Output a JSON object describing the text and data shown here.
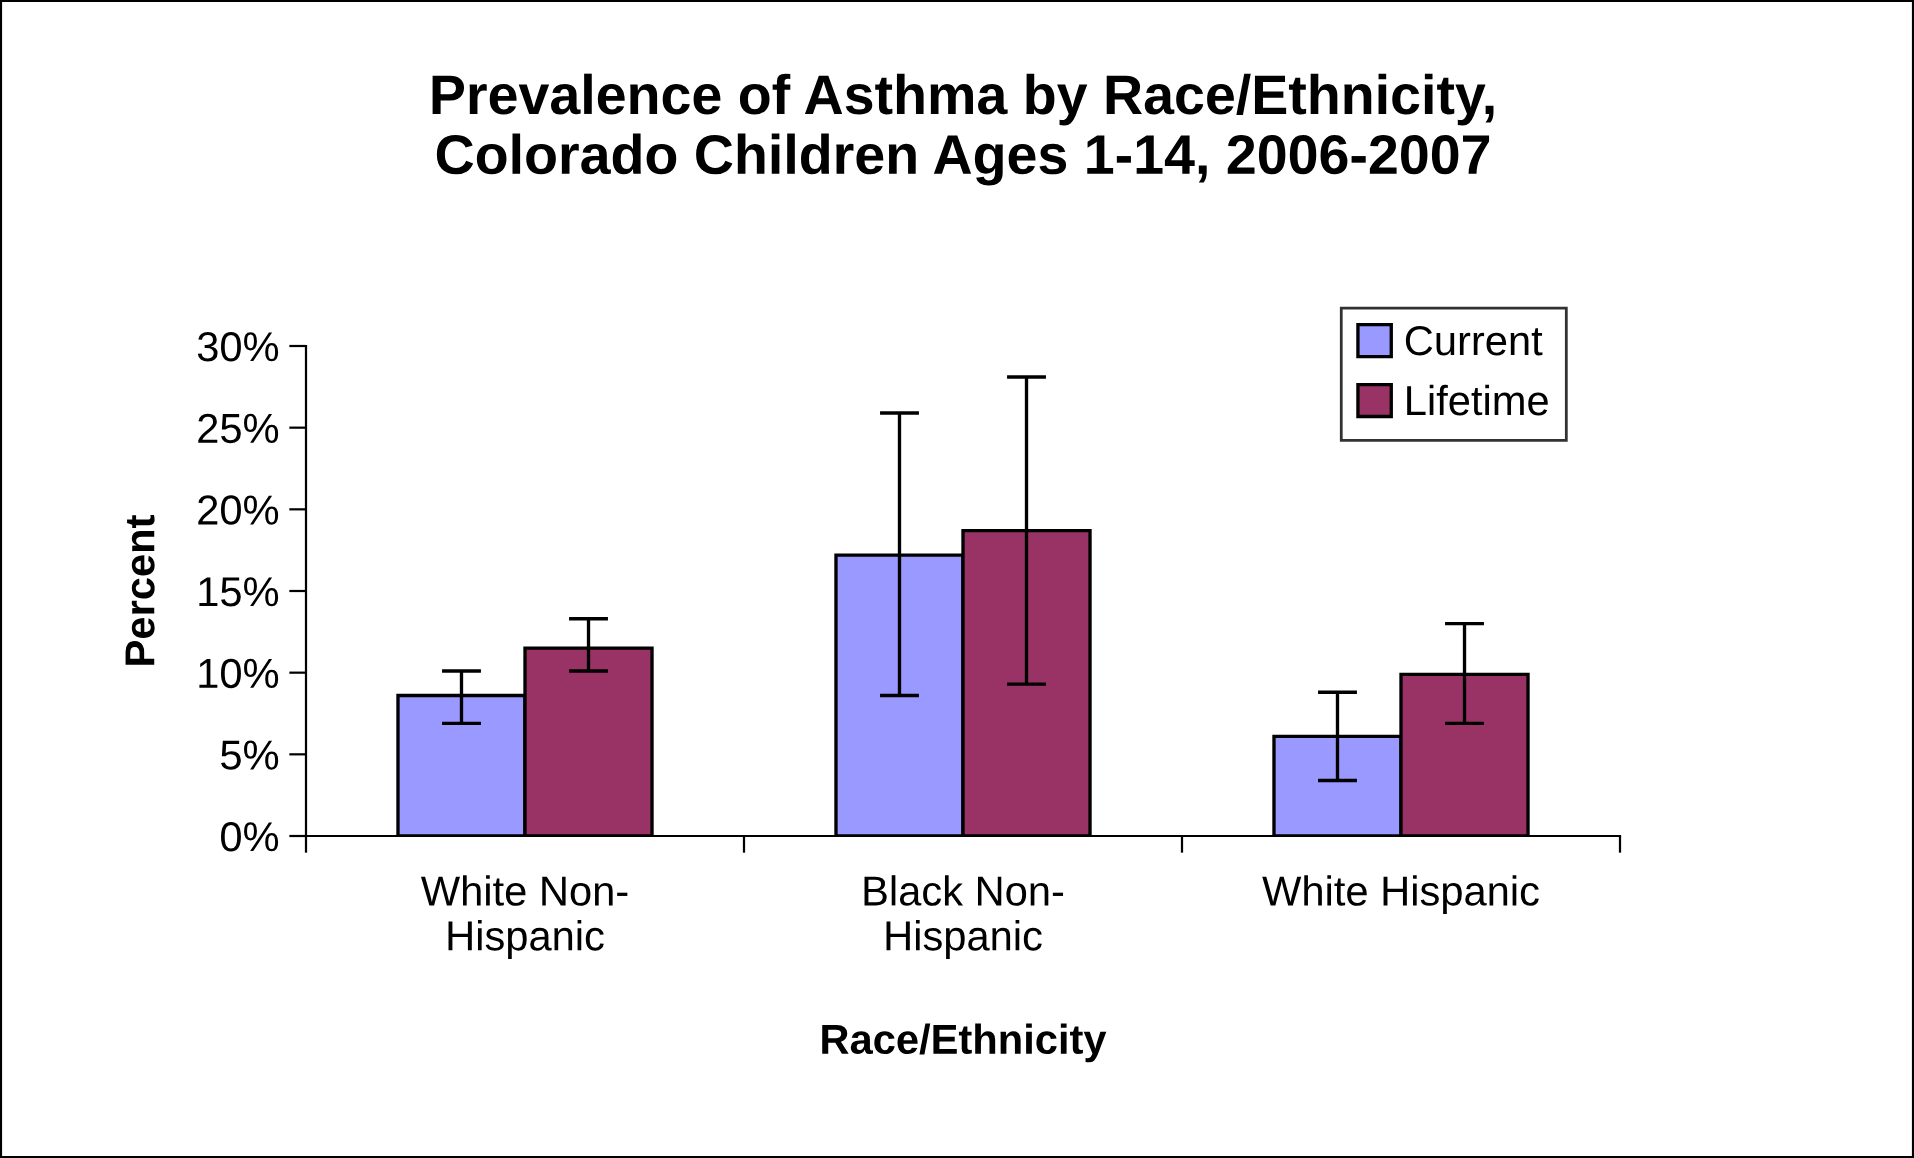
{
  "chart_data": {
    "type": "bar",
    "title": "Prevalence of Asthma by Race/Ethnicity,\nColorado Children Ages 1-14, 2006-2007",
    "xlabel": "Race/Ethnicity",
    "ylabel": "Percent",
    "categories": [
      "White Non-\nHispanic",
      "Black Non-\nHispanic",
      "White Hispanic"
    ],
    "series": [
      {
        "name": "Current",
        "color": "#9999ff",
        "values": [
          8.6,
          17.2,
          6.1
        ],
        "errors": [
          [
            6.9,
            10.1
          ],
          [
            8.6,
            25.9
          ],
          [
            3.4,
            8.8
          ]
        ]
      },
      {
        "name": "Lifetime",
        "color": "#993366",
        "values": [
          11.5,
          18.7,
          9.9
        ],
        "errors": [
          [
            10.1,
            13.3
          ],
          [
            9.3,
            28.1
          ],
          [
            6.9,
            13.0
          ]
        ]
      }
    ],
    "ylim": [
      0,
      30
    ],
    "yticks": [
      {
        "value": 0,
        "label": "0%"
      },
      {
        "value": 5,
        "label": "5%"
      },
      {
        "value": 10,
        "label": "10%"
      },
      {
        "value": 15,
        "label": "15%"
      },
      {
        "value": 20,
        "label": "20%"
      },
      {
        "value": 25,
        "label": "25%"
      },
      {
        "value": 30,
        "label": "30%"
      }
    ],
    "grid": false,
    "legend": "top right"
  }
}
